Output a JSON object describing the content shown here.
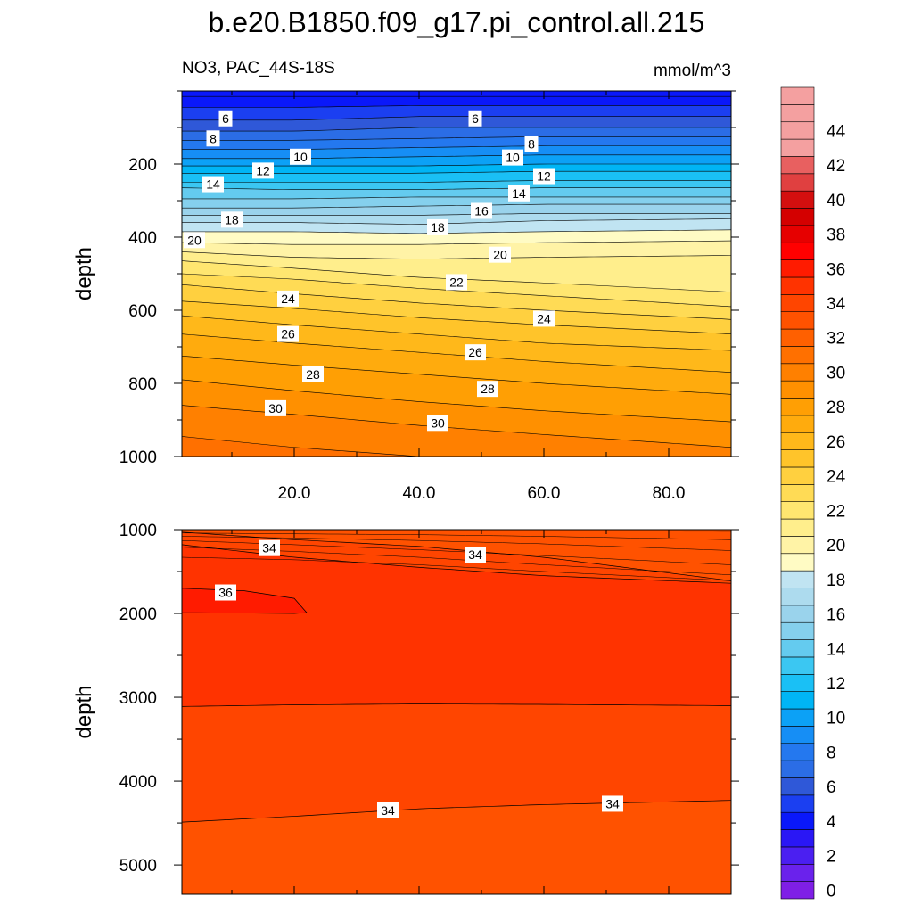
{
  "figure": {
    "title": "b.e20.B1850.f09_g17.pi_control.all.215",
    "subtitle_left": "NO3, PAC_44S-18S",
    "subtitle_right": "mmol/m^3"
  },
  "colors": {
    "blue_ramp": [
      "#7f1fe6",
      "#6a22ec",
      "#4b1ff1",
      "#2a17f5",
      "#0a18fa",
      "#1b3ff1",
      "#2f58d8",
      "#2b6de6",
      "#2478ef",
      "#168ef5",
      "#0ca1f6",
      "#00b5f5",
      "#1ac0f5",
      "#3bc7f2",
      "#64cbef",
      "#85d0ed",
      "#9ad3ec",
      "#addbee",
      "#c0e4f2"
    ],
    "warm_ramp": [
      "#fffbc4",
      "#fff3a6",
      "#ffee8c",
      "#ffe670",
      "#ffdb55",
      "#ffd03f",
      "#ffc42a",
      "#ffb81a",
      "#ffab0d",
      "#ff9f04",
      "#ff9000",
      "#ff8000",
      "#ff7000",
      "#ff6000",
      "#ff5200",
      "#ff4500",
      "#ff3300",
      "#ff1b00",
      "#ff0000",
      "#e60000",
      "#d40000",
      "#d40f0f",
      "#e04040",
      "#e86060",
      "#f4a0a0"
    ],
    "line": "#000000"
  },
  "chart_data": [
    {
      "type": "contour",
      "panel": "upper",
      "ylabel": "depth",
      "xlabel": "",
      "xlim": [
        2,
        90
      ],
      "ylim": [
        1000,
        0
      ],
      "x_ticks": [
        20,
        40,
        60,
        80
      ],
      "x_tick_labels": [
        "20.0",
        "40.0",
        "60.0",
        "80.0"
      ],
      "y_ticks": [
        200,
        400,
        600,
        800,
        1000
      ],
      "y_tick_labels": [
        "200",
        "400",
        "600",
        "800",
        "1000"
      ],
      "contour_interval": 1,
      "min_level": 4,
      "max_level": 31,
      "isoline_depths": {
        "x": [
          2,
          20,
          40,
          60,
          90
        ],
        "levels": {
          "4": [
            15,
            15,
            15,
            15,
            15
          ],
          "5": [
            45,
            45,
            40,
            40,
            40
          ],
          "6": [
            80,
            80,
            70,
            70,
            70
          ],
          "7": [
            110,
            110,
            100,
            100,
            100
          ],
          "8": [
            135,
            135,
            130,
            125,
            125
          ],
          "9": [
            160,
            160,
            155,
            150,
            150
          ],
          "10": [
            185,
            185,
            180,
            175,
            175
          ],
          "11": [
            205,
            205,
            205,
            200,
            200
          ],
          "12": [
            225,
            225,
            225,
            220,
            220
          ],
          "13": [
            250,
            250,
            250,
            245,
            245
          ],
          "14": [
            265,
            270,
            270,
            265,
            265
          ],
          "15": [
            295,
            295,
            290,
            290,
            290
          ],
          "16": [
            320,
            320,
            315,
            310,
            310
          ],
          "17": [
            340,
            340,
            340,
            335,
            335
          ],
          "18": [
            360,
            360,
            365,
            355,
            350
          ],
          "19": [
            385,
            385,
            390,
            385,
            380
          ],
          "20": [
            415,
            420,
            420,
            415,
            410
          ],
          "21": [
            440,
            455,
            460,
            455,
            450
          ],
          "22": [
            465,
            485,
            510,
            525,
            550
          ],
          "23": [
            500,
            515,
            540,
            560,
            590
          ],
          "24": [
            530,
            555,
            580,
            600,
            625
          ],
          "25": [
            575,
            595,
            620,
            640,
            665
          ],
          "26": [
            615,
            640,
            665,
            690,
            710
          ],
          "27": [
            665,
            690,
            715,
            740,
            770
          ],
          "28": [
            725,
            750,
            775,
            800,
            830
          ],
          "29": [
            790,
            820,
            850,
            875,
            905
          ],
          "30": [
            860,
            885,
            915,
            940,
            975
          ],
          "31": [
            945,
            975,
            1000,
            1020,
            1040
          ]
        }
      },
      "labels": [
        {
          "text": "6",
          "x": 9,
          "y": 75
        },
        {
          "text": "6",
          "x": 49,
          "y": 75
        },
        {
          "text": "8",
          "x": 7,
          "y": 130
        },
        {
          "text": "8",
          "x": 58,
          "y": 145
        },
        {
          "text": "10",
          "x": 21,
          "y": 180
        },
        {
          "text": "10",
          "x": 55,
          "y": 182
        },
        {
          "text": "12",
          "x": 15,
          "y": 218
        },
        {
          "text": "12",
          "x": 60,
          "y": 233
        },
        {
          "text": "14",
          "x": 7,
          "y": 255
        },
        {
          "text": "14",
          "x": 56,
          "y": 280
        },
        {
          "text": "16",
          "x": 50,
          "y": 328
        },
        {
          "text": "18",
          "x": 10,
          "y": 352
        },
        {
          "text": "18",
          "x": 43,
          "y": 373
        },
        {
          "text": "20",
          "x": 4,
          "y": 408
        },
        {
          "text": "20",
          "x": 53,
          "y": 448
        },
        {
          "text": "22",
          "x": 46,
          "y": 523
        },
        {
          "text": "24",
          "x": 19,
          "y": 568
        },
        {
          "text": "24",
          "x": 60,
          "y": 623
        },
        {
          "text": "26",
          "x": 19,
          "y": 665
        },
        {
          "text": "26",
          "x": 49,
          "y": 715
        },
        {
          "text": "28",
          "x": 23,
          "y": 775
        },
        {
          "text": "28",
          "x": 51,
          "y": 815
        },
        {
          "text": "30",
          "x": 17,
          "y": 868
        },
        {
          "text": "30",
          "x": 43,
          "y": 908
        }
      ]
    },
    {
      "type": "contour",
      "panel": "lower",
      "ylabel": "depth",
      "xlabel": "",
      "xlim": [
        2,
        90
      ],
      "ylim": [
        5350,
        1000
      ],
      "x_ticks": [
        20,
        40,
        60,
        80
      ],
      "y_ticks": [
        1000,
        2000,
        3000,
        4000,
        5000
      ],
      "y_tick_labels": [
        "1000",
        "2000",
        "3000",
        "4000",
        "5000"
      ],
      "regions": [
        {
          "level": 33,
          "top": [
            1000,
            1000,
            1000,
            1000,
            1000
          ],
          "bottom": [
            1000,
            1000,
            1000,
            1000,
            1000
          ]
        },
        {
          "level": 34,
          "boundary_x": [
            2,
            20,
            40,
            60,
            90
          ],
          "top": [
            1030,
            1120,
            1200,
            1330,
            1610
          ]
        },
        {
          "level": 35,
          "boundary_x": [
            2,
            20,
            40,
            60,
            90
          ],
          "top": [
            1180,
            1330,
            1450,
            1550,
            1640
          ]
        },
        {
          "level": 34,
          "boundary_x": [
            2,
            20,
            40,
            60,
            90
          ],
          "top": [
            3110,
            3090,
            3080,
            3085,
            3100
          ]
        },
        {
          "level": 33,
          "boundary_x": [
            2,
            20,
            40,
            60,
            90
          ],
          "top": [
            4490,
            4420,
            4330,
            4280,
            4230
          ]
        }
      ],
      "thin_isolines": {
        "x": [
          2,
          20,
          40,
          60,
          90
        ],
        "depths": [
          [
            1015,
            1015,
            1015,
            1015,
            1020
          ],
          [
            1040,
            1050,
            1060,
            1080,
            1120
          ],
          [
            1080,
            1100,
            1130,
            1170,
            1250
          ],
          [
            1130,
            1180,
            1240,
            1310,
            1420
          ],
          [
            1210,
            1260,
            1330,
            1420,
            1540
          ],
          [
            1330,
            1360,
            1420,
            1500,
            1610
          ]
        ]
      },
      "max_pocket": {
        "level": 36,
        "x": [
          2,
          12,
          20,
          22,
          20,
          2
        ],
        "depth": [
          1700,
          1730,
          1820,
          1990,
          2000,
          1990
        ]
      },
      "labels": [
        {
          "text": "34",
          "x": 16,
          "y": 1220
        },
        {
          "text": "34",
          "x": 49,
          "y": 1300
        },
        {
          "text": "36",
          "x": 9,
          "y": 1750
        },
        {
          "text": "34",
          "x": 35,
          "y": 4350
        },
        {
          "text": "34",
          "x": 71,
          "y": 4270
        }
      ]
    },
    {
      "type": "colorbar",
      "levels": [
        0,
        1,
        2,
        3,
        4,
        5,
        6,
        7,
        8,
        9,
        10,
        11,
        12,
        13,
        14,
        15,
        16,
        17,
        18,
        19,
        20,
        21,
        22,
        23,
        24,
        25,
        26,
        27,
        28,
        29,
        30,
        31,
        32,
        33,
        34,
        35,
        36,
        37,
        38,
        39,
        40,
        41,
        42,
        43,
        44,
        45,
        46
      ],
      "tick_labels": [
        "0",
        "2",
        "4",
        "6",
        "8",
        "10",
        "12",
        "14",
        "16",
        "18",
        "20",
        "22",
        "24",
        "26",
        "28",
        "30",
        "32",
        "34",
        "36",
        "38",
        "40",
        "42",
        "44"
      ]
    }
  ]
}
